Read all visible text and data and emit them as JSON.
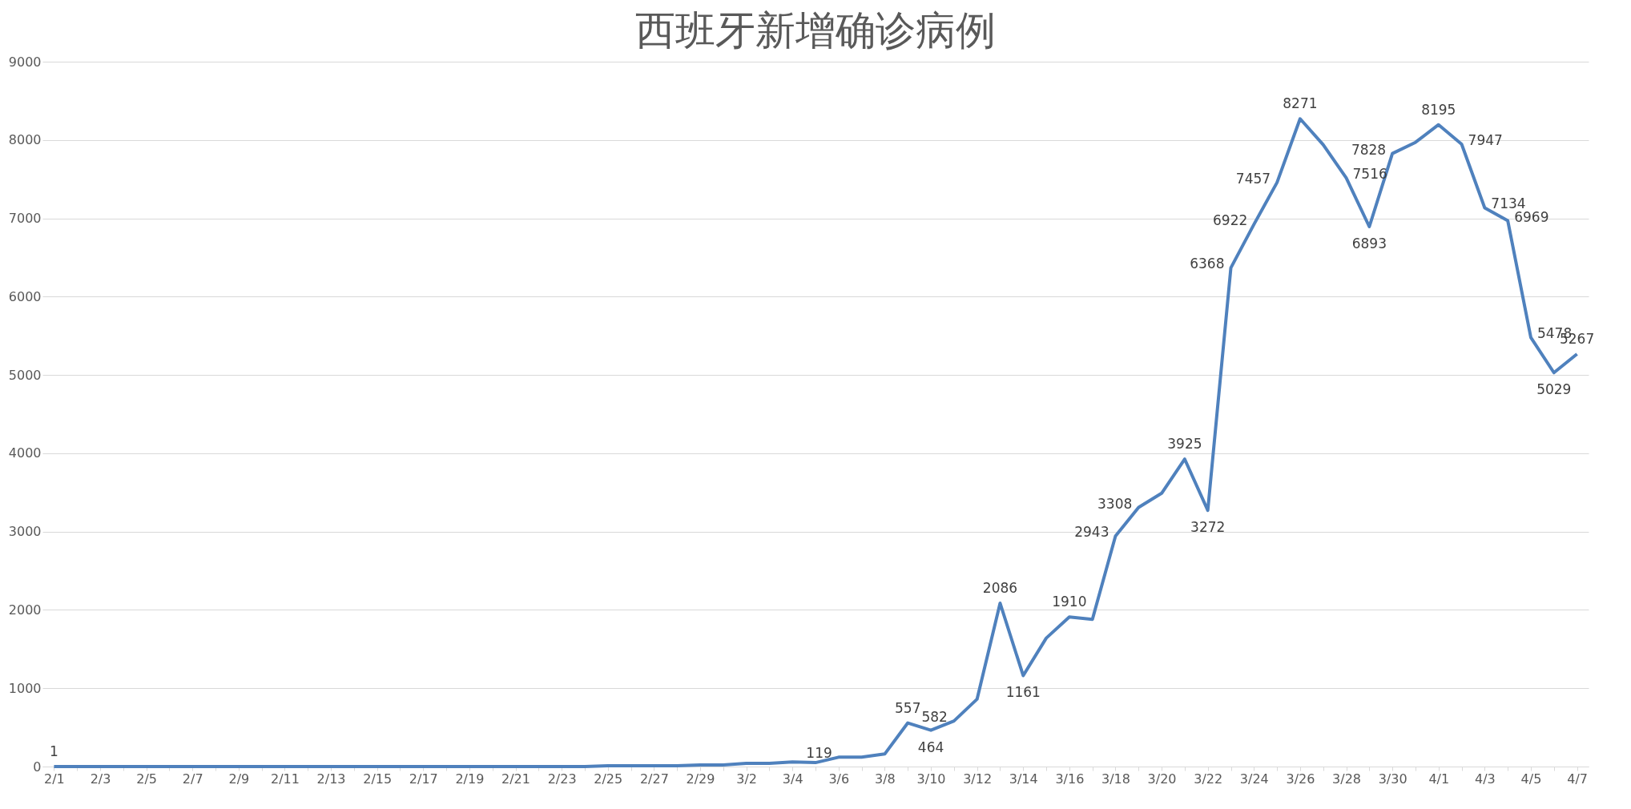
{
  "chart_data": {
    "type": "line",
    "title": "西班牙新增确诊病例",
    "categories": [
      "2/1",
      null,
      "2/3",
      null,
      "2/5",
      null,
      "2/7",
      null,
      "2/9",
      null,
      "2/11",
      null,
      "2/13",
      null,
      "2/15",
      null,
      "2/17",
      null,
      "2/19",
      null,
      "2/21",
      null,
      "2/23",
      null,
      "2/25",
      null,
      "2/27",
      null,
      "2/29",
      null,
      "3/2",
      null,
      "3/4",
      null,
      "3/6",
      null,
      "3/8",
      null,
      "3/10",
      null,
      "3/12",
      null,
      "3/14",
      null,
      "3/16",
      null,
      "3/18",
      null,
      "3/20",
      null,
      "3/22",
      null,
      "3/24",
      null,
      "3/26",
      null,
      "3/28",
      null,
      "3/30",
      null,
      "4/1",
      null,
      "4/3",
      null,
      "4/5",
      null,
      "4/7"
    ],
    "series": [
      {
        "color": "#4f81bd",
        "values": [
          1,
          0,
          0,
          0,
          0,
          0,
          0,
          0,
          0,
          1,
          0,
          0,
          0,
          0,
          0,
          0,
          0,
          0,
          0,
          0,
          0,
          0,
          0,
          0,
          10,
          10,
          10,
          10,
          20,
          20,
          40,
          40,
          60,
          50,
          119,
          120,
          160,
          557,
          464,
          582,
          860,
          2086,
          1161,
          1640,
          1910,
          1880,
          2943,
          3308,
          3490,
          3925,
          3272,
          6368,
          6922,
          7457,
          8271,
          7940,
          7516,
          6893,
          7828,
          7970,
          8195,
          7947,
          7134,
          6969,
          5478,
          5029,
          5267
        ],
        "value_labels": [
          "1",
          null,
          null,
          null,
          null,
          null,
          null,
          null,
          null,
          null,
          null,
          null,
          null,
          null,
          null,
          null,
          null,
          null,
          null,
          null,
          null,
          null,
          null,
          null,
          null,
          null,
          null,
          null,
          null,
          null,
          null,
          null,
          null,
          null,
          "119",
          null,
          null,
          "557",
          "464",
          "582",
          null,
          "2086",
          "1161",
          null,
          "1910",
          null,
          "2943",
          "3308",
          null,
          "3925",
          "3272",
          "6368",
          "6922",
          "7457",
          "8271",
          null,
          "7516",
          "6893",
          "7828",
          null,
          "8195",
          "7947",
          "7134",
          "6969",
          "5478",
          "5029",
          "5267"
        ]
      }
    ],
    "ylim": [
      0,
      9000
    ],
    "yticks": [
      0,
      1000,
      2000,
      3000,
      4000,
      5000,
      6000,
      7000,
      8000,
      9000
    ],
    "grid": "y",
    "legend": false,
    "line_style": "solid",
    "marker": "none"
  }
}
